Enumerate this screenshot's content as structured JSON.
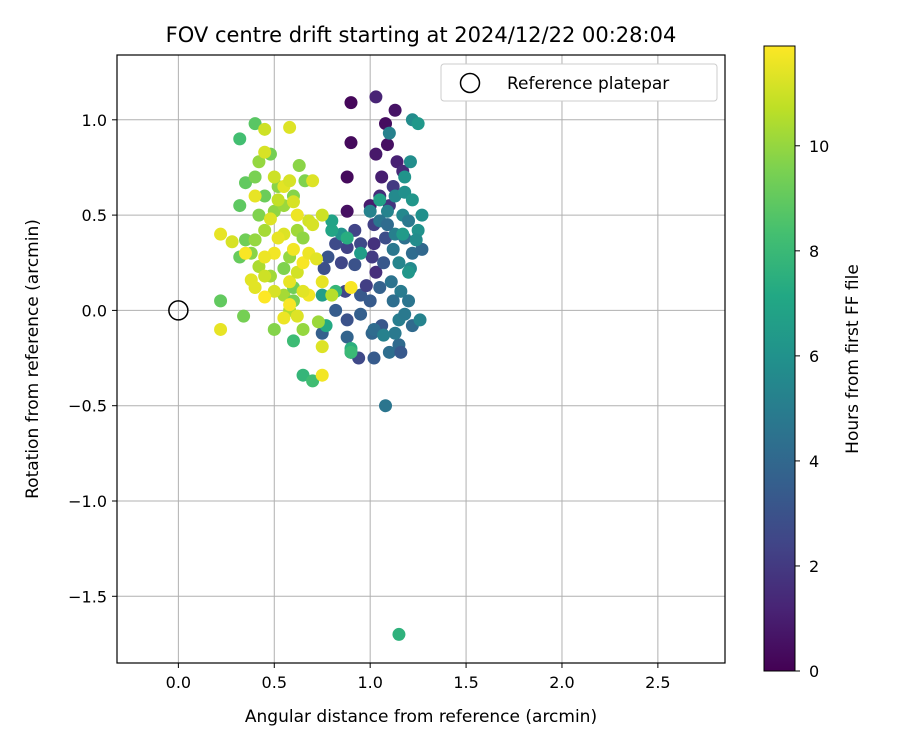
{
  "chart_data": {
    "type": "scatter",
    "title": "FOV centre drift starting at 2024/12/22 00:28:04",
    "xlabel": "Angular distance from reference (arcmin)",
    "ylabel": "Rotation from reference (arcmin)",
    "xlim": [
      -0.32,
      2.85
    ],
    "ylim": [
      -1.85,
      1.34
    ],
    "xticks": [
      0.0,
      0.5,
      1.0,
      1.5,
      2.0,
      2.5
    ],
    "xtick_labels": [
      "0.0",
      "0.5",
      "1.0",
      "1.5",
      "2.0",
      "2.5"
    ],
    "yticks": [
      -1.5,
      -1.0,
      -0.5,
      0.0,
      0.5,
      1.0
    ],
    "ytick_labels": [
      "−1.5",
      "−1.0",
      "−0.5",
      "0.0",
      "0.5",
      "1.0"
    ],
    "grid": true,
    "legend": {
      "placement": "upper-right",
      "entries": [
        "Reference platepar"
      ]
    },
    "reference_point": {
      "x": 0.0,
      "y": 0.0
    },
    "colorbar": {
      "label": "Hours from first FF file",
      "colormap": "viridis",
      "range": [
        0,
        11.9
      ],
      "ticks": [
        0,
        2,
        4,
        6,
        8,
        10
      ],
      "tick_labels": [
        "0",
        "2",
        "4",
        "6",
        "8",
        "10"
      ]
    },
    "series": [
      {
        "c_label": "Hours from first FF file",
        "points": [
          [
            0.9,
            1.09,
            0.2
          ],
          [
            0.9,
            0.88,
            0.3
          ],
          [
            1.03,
            1.12,
            1.2
          ],
          [
            1.08,
            0.98,
            0.4
          ],
          [
            1.09,
            0.87,
            0.5
          ],
          [
            1.13,
            1.05,
            0.6
          ],
          [
            0.88,
            0.7,
            0.3
          ],
          [
            1.03,
            0.82,
            0.8
          ],
          [
            1.06,
            0.7,
            1.0
          ],
          [
            1.14,
            0.78,
            1.1
          ],
          [
            1.17,
            0.73,
            1.4
          ],
          [
            0.88,
            0.52,
            0.5
          ],
          [
            1.0,
            0.55,
            0.9
          ],
          [
            1.05,
            0.6,
            1.5
          ],
          [
            1.1,
            0.55,
            1.8
          ],
          [
            1.12,
            0.65,
            2.0
          ],
          [
            1.02,
            0.45,
            2.2
          ],
          [
            0.92,
            0.42,
            2.4
          ],
          [
            0.95,
            0.35,
            2.6
          ],
          [
            1.02,
            0.35,
            1.7
          ],
          [
            1.08,
            0.38,
            2.8
          ],
          [
            0.88,
            0.33,
            2.3
          ],
          [
            0.85,
            0.25,
            2.5
          ],
          [
            0.92,
            0.24,
            3.0
          ],
          [
            1.01,
            0.28,
            2.1
          ],
          [
            1.03,
            0.2,
            1.6
          ],
          [
            1.07,
            0.25,
            3.2
          ],
          [
            0.82,
            0.35,
            2.7
          ],
          [
            0.78,
            0.28,
            3.1
          ],
          [
            0.76,
            0.22,
            2.9
          ],
          [
            0.87,
            0.1,
            2.5
          ],
          [
            0.95,
            0.08,
            3.3
          ],
          [
            0.98,
            0.13,
            2.2
          ],
          [
            1.0,
            0.05,
            3.4
          ],
          [
            1.05,
            0.12,
            3.7
          ],
          [
            0.82,
            0.0,
            3.5
          ],
          [
            0.88,
            -0.05,
            3.0
          ],
          [
            0.95,
            -0.02,
            3.6
          ],
          [
            1.01,
            -0.12,
            3.9
          ],
          [
            1.06,
            -0.08,
            3.2
          ],
          [
            0.88,
            -0.14,
            3.8
          ],
          [
            0.94,
            -0.25,
            2.6
          ],
          [
            1.02,
            -0.25,
            3.4
          ],
          [
            1.1,
            -0.22,
            4.3
          ],
          [
            1.15,
            -0.18,
            4.1
          ],
          [
            1.16,
            -0.22,
            3.3
          ],
          [
            0.75,
            -0.12,
            3.6
          ],
          [
            0.9,
            -0.22,
            3.1
          ],
          [
            1.08,
            -0.5,
            4.6
          ],
          [
            1.1,
            0.93,
            5.2
          ],
          [
            1.22,
            1.0,
            5.7
          ],
          [
            1.25,
            0.98,
            6.3
          ],
          [
            1.21,
            0.78,
            5.8
          ],
          [
            1.18,
            0.7,
            6.1
          ],
          [
            1.13,
            0.6,
            5.6
          ],
          [
            1.18,
            0.62,
            5.9
          ],
          [
            1.22,
            0.58,
            6.2
          ],
          [
            1.09,
            0.52,
            5.3
          ],
          [
            1.17,
            0.5,
            5.5
          ],
          [
            1.27,
            0.5,
            5.9
          ],
          [
            1.25,
            0.42,
            6.0
          ],
          [
            1.2,
            0.47,
            4.8
          ],
          [
            1.13,
            0.4,
            5.1
          ],
          [
            1.18,
            0.38,
            4.4
          ],
          [
            1.12,
            0.32,
            4.7
          ],
          [
            1.22,
            0.3,
            4.2
          ],
          [
            1.27,
            0.32,
            4.0
          ],
          [
            1.15,
            0.25,
            5.4
          ],
          [
            1.21,
            0.22,
            5.6
          ],
          [
            1.11,
            0.15,
            4.5
          ],
          [
            1.16,
            0.1,
            4.9
          ],
          [
            1.12,
            0.05,
            4.3
          ],
          [
            1.2,
            0.05,
            4.6
          ],
          [
            1.15,
            -0.05,
            5.0
          ],
          [
            1.22,
            -0.08,
            4.1
          ],
          [
            1.26,
            -0.05,
            5.3
          ],
          [
            1.13,
            -0.12,
            4.8
          ],
          [
            1.02,
            -0.1,
            4.2
          ],
          [
            1.07,
            -0.13,
            5.2
          ],
          [
            1.0,
            0.52,
            5.3
          ],
          [
            1.05,
            0.47,
            4.6
          ],
          [
            1.17,
            0.4,
            6.4
          ],
          [
            1.09,
            0.45,
            4.2
          ],
          [
            1.2,
            0.2,
            6.2
          ],
          [
            1.24,
            0.37,
            5.7
          ],
          [
            1.18,
            -0.02,
            4.8
          ],
          [
            0.85,
            0.4,
            6.1
          ],
          [
            0.95,
            0.3,
            6.5
          ],
          [
            0.8,
            0.42,
            7.0
          ],
          [
            1.05,
            0.58,
            6.8
          ],
          [
            0.88,
            0.38,
            7.4
          ],
          [
            0.75,
            0.08,
            6.6
          ],
          [
            0.77,
            -0.08,
            7.2
          ],
          [
            0.9,
            -0.2,
            7.5
          ],
          [
            0.9,
            -0.22,
            8.0
          ],
          [
            0.82,
            0.1,
            7.8
          ],
          [
            0.8,
            0.47,
            6.9
          ],
          [
            0.65,
            -0.34,
            7.8
          ],
          [
            0.7,
            -0.37,
            8.2
          ],
          [
            0.32,
            0.9,
            8.3
          ],
          [
            1.15,
            -1.7,
            7.6
          ],
          [
            0.6,
            -0.16,
            8.1
          ],
          [
            0.4,
            0.98,
            8.8
          ],
          [
            0.48,
            0.82,
            9.4
          ],
          [
            0.35,
            0.67,
            9.0
          ],
          [
            0.4,
            0.7,
            9.5
          ],
          [
            0.45,
            0.6,
            9.2
          ],
          [
            0.52,
            0.65,
            9.8
          ],
          [
            0.32,
            0.55,
            8.9
          ],
          [
            0.42,
            0.5,
            9.6
          ],
          [
            0.5,
            0.52,
            9.9
          ],
          [
            0.55,
            0.55,
            10.1
          ],
          [
            0.6,
            0.6,
            9.7
          ],
          [
            0.35,
            0.37,
            9.3
          ],
          [
            0.4,
            0.37,
            10.0
          ],
          [
            0.45,
            0.42,
            10.3
          ],
          [
            0.32,
            0.28,
            9.1
          ],
          [
            0.38,
            0.3,
            9.8
          ],
          [
            0.42,
            0.23,
            10.4
          ],
          [
            0.48,
            0.18,
            10.2
          ],
          [
            0.55,
            0.22,
            9.6
          ],
          [
            0.58,
            0.28,
            10.0
          ],
          [
            0.62,
            0.42,
            10.2
          ],
          [
            0.65,
            0.38,
            9.9
          ],
          [
            0.55,
            0.08,
            10.3
          ],
          [
            0.6,
            0.05,
            9.5
          ],
          [
            0.22,
            0.05,
            9.0
          ],
          [
            0.34,
            -0.03,
            9.4
          ],
          [
            0.5,
            -0.1,
            9.7
          ],
          [
            0.58,
            0.0,
            10.5
          ],
          [
            0.6,
            0.12,
            9.3
          ],
          [
            0.65,
            -0.1,
            10.0
          ],
          [
            0.73,
            -0.06,
            10.1
          ],
          [
            0.63,
            0.76,
            9.8
          ],
          [
            0.66,
            0.68,
            9.6
          ],
          [
            0.42,
            0.78,
            10.0
          ],
          [
            0.52,
            0.58,
            10.8
          ],
          [
            0.45,
            0.95,
            11.0
          ],
          [
            0.58,
            0.96,
            11.3
          ],
          [
            0.45,
            0.83,
            11.2
          ],
          [
            0.5,
            0.7,
            11.0
          ],
          [
            0.4,
            0.6,
            11.5
          ],
          [
            0.55,
            0.65,
            11.4
          ],
          [
            0.6,
            0.57,
            11.2
          ],
          [
            0.62,
            0.5,
            11.6
          ],
          [
            0.68,
            0.47,
            11.1
          ],
          [
            0.7,
            0.68,
            11.3
          ],
          [
            0.22,
            0.4,
            11.5
          ],
          [
            0.28,
            0.36,
            11.2
          ],
          [
            0.35,
            0.3,
            11.8
          ],
          [
            0.38,
            0.16,
            11.4
          ],
          [
            0.45,
            0.18,
            11.0
          ],
          [
            0.5,
            0.3,
            11.7
          ],
          [
            0.55,
            0.4,
            11.3
          ],
          [
            0.58,
            0.15,
            11.5
          ],
          [
            0.62,
            0.2,
            11.1
          ],
          [
            0.65,
            0.25,
            11.8
          ],
          [
            0.68,
            0.3,
            11.6
          ],
          [
            0.72,
            0.27,
            11.4
          ],
          [
            0.7,
            0.45,
            11.2
          ],
          [
            0.75,
            0.5,
            11.0
          ],
          [
            0.8,
            0.08,
            10.6
          ],
          [
            0.75,
            0.15,
            11.5
          ],
          [
            0.68,
            0.08,
            11.7
          ],
          [
            0.62,
            -0.03,
            11.3
          ],
          [
            0.58,
            0.03,
            11.8
          ],
          [
            0.55,
            -0.04,
            11.6
          ],
          [
            0.5,
            0.1,
            11.2
          ],
          [
            0.45,
            0.07,
            11.9
          ],
          [
            0.4,
            0.12,
            11.4
          ],
          [
            0.22,
            -0.1,
            11.5
          ],
          [
            0.75,
            -0.19,
            11.3
          ],
          [
            0.75,
            -0.34,
            11.7
          ],
          [
            0.9,
            0.12,
            11.8
          ],
          [
            0.48,
            0.48,
            11.3
          ],
          [
            0.52,
            0.38,
            11.5
          ],
          [
            0.45,
            0.28,
            11.6
          ],
          [
            0.6,
            0.32,
            11.7
          ],
          [
            0.65,
            0.1,
            11.4
          ],
          [
            0.58,
            0.68,
            11.2
          ]
        ]
      }
    ]
  }
}
